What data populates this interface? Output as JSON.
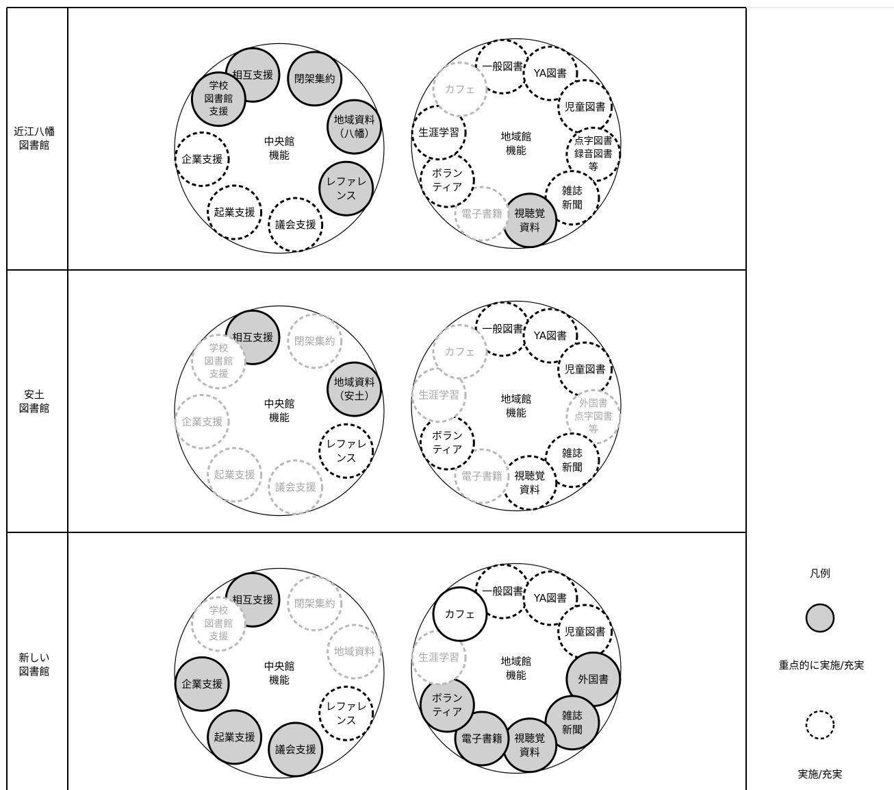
{
  "rows": [
    {
      "label": "近江八幡\n図書館",
      "central_title": [
        "中央館",
        "機能"
      ],
      "regional_title": [
        "地域館",
        "機能"
      ],
      "central": [
        {
          "lines": [
            "相互支援"
          ],
          "s": "k"
        },
        {
          "lines": [
            "閉架集約"
          ],
          "s": "k"
        },
        {
          "lines": [
            "地域資料",
            "（八幡）"
          ],
          "s": "k"
        },
        {
          "lines": [
            "レファレ",
            "ンス"
          ],
          "s": "k"
        },
        {
          "lines": [
            "議会支援"
          ],
          "s": "d"
        },
        {
          "lines": [
            "起業支援"
          ],
          "s": "d"
        },
        {
          "lines": [
            "企業支援"
          ],
          "s": "d"
        },
        {
          "lines": [
            "学校",
            "図書館",
            "支援"
          ],
          "s": "k"
        }
      ],
      "regional": [
        {
          "lines": [
            "一般図書"
          ],
          "s": "d"
        },
        {
          "lines": [
            "YA図書"
          ],
          "s": "d"
        },
        {
          "lines": [
            "児童図書"
          ],
          "s": "d"
        },
        {
          "lines": [
            "点字図書",
            "録音図書",
            "等"
          ],
          "s": "d"
        },
        {
          "lines": [
            "雑誌",
            "新聞"
          ],
          "s": "d"
        },
        {
          "lines": [
            "視聴覚",
            "資料"
          ],
          "s": "k"
        },
        {
          "lines": [
            "電子書籍"
          ],
          "s": "g"
        },
        {
          "lines": [
            "ボラン",
            "ティア"
          ],
          "s": "d"
        },
        {
          "lines": [
            "生涯学習"
          ],
          "s": "d"
        },
        {
          "lines": [
            "カフェ"
          ],
          "s": "g"
        }
      ]
    },
    {
      "label": "安土\n図書館",
      "central_title": [
        "中央館",
        "機能"
      ],
      "regional_title": [
        "地域館",
        "機能"
      ],
      "central": [
        {
          "lines": [
            "相互支援"
          ],
          "s": "k"
        },
        {
          "lines": [
            "閉架集約"
          ],
          "s": "g"
        },
        {
          "lines": [
            "地域資料",
            "（安土）"
          ],
          "s": "k"
        },
        {
          "lines": [
            "レファレ",
            "ンス"
          ],
          "s": "d"
        },
        {
          "lines": [
            "議会支援"
          ],
          "s": "g"
        },
        {
          "lines": [
            "起業支援"
          ],
          "s": "g"
        },
        {
          "lines": [
            "企業支援"
          ],
          "s": "g"
        },
        {
          "lines": [
            "学校",
            "図書館",
            "支援"
          ],
          "s": "g"
        }
      ],
      "regional": [
        {
          "lines": [
            "一般図書"
          ],
          "s": "d"
        },
        {
          "lines": [
            "YA図書"
          ],
          "s": "d"
        },
        {
          "lines": [
            "児童図書"
          ],
          "s": "d"
        },
        {
          "lines": [
            "外国書",
            "点字図書",
            "等"
          ],
          "s": "g"
        },
        {
          "lines": [
            "雑誌",
            "新聞"
          ],
          "s": "d"
        },
        {
          "lines": [
            "視聴覚",
            "資料"
          ],
          "s": "d"
        },
        {
          "lines": [
            "電子書籍"
          ],
          "s": "g"
        },
        {
          "lines": [
            "ボラン",
            "ティア"
          ],
          "s": "d"
        },
        {
          "lines": [
            "生涯学習"
          ],
          "s": "g"
        },
        {
          "lines": [
            "カフェ"
          ],
          "s": "g"
        }
      ]
    },
    {
      "label": "新しい\n図書館",
      "central_title": [
        "中央館",
        "機能"
      ],
      "regional_title": [
        "地域館",
        "機能"
      ],
      "central": [
        {
          "lines": [
            "相互支援"
          ],
          "s": "k"
        },
        {
          "lines": [
            "閉架集約"
          ],
          "s": "g"
        },
        {
          "lines": [
            "地域資料"
          ],
          "s": "g"
        },
        {
          "lines": [
            "レファレ",
            "ンス"
          ],
          "s": "d"
        },
        {
          "lines": [
            "議会支援"
          ],
          "s": "k"
        },
        {
          "lines": [
            "起業支援"
          ],
          "s": "k"
        },
        {
          "lines": [
            "企業支援"
          ],
          "s": "k"
        },
        {
          "lines": [
            "学校",
            "図書館",
            "支援"
          ],
          "s": "g"
        }
      ],
      "regional": [
        {
          "lines": [
            "一般図書"
          ],
          "s": "d"
        },
        {
          "lines": [
            "YA図書"
          ],
          "s": "d"
        },
        {
          "lines": [
            "児童図書"
          ],
          "s": "d"
        },
        {
          "lines": [
            "外国書"
          ],
          "s": "k"
        },
        {
          "lines": [
            "雑誌",
            "新聞"
          ],
          "s": "k"
        },
        {
          "lines": [
            "視聴覚",
            "資料"
          ],
          "s": "k"
        },
        {
          "lines": [
            "電子書籍"
          ],
          "s": "k"
        },
        {
          "lines": [
            "ボラン",
            "ティア"
          ],
          "s": "k"
        },
        {
          "lines": [
            "生涯学習"
          ],
          "s": "g"
        },
        {
          "lines": [
            "カフェ"
          ],
          "s": "w"
        }
      ]
    }
  ],
  "legend": {
    "title": "凡例",
    "priority_label": "重点的に実施/充実",
    "normal_label": "実施/充実"
  },
  "colors": {
    "fill_priority": "#d0d0d0",
    "stroke_black": "#000000",
    "stroke_gray": "#b8b8b8",
    "text_gray": "#a8a8a8"
  }
}
